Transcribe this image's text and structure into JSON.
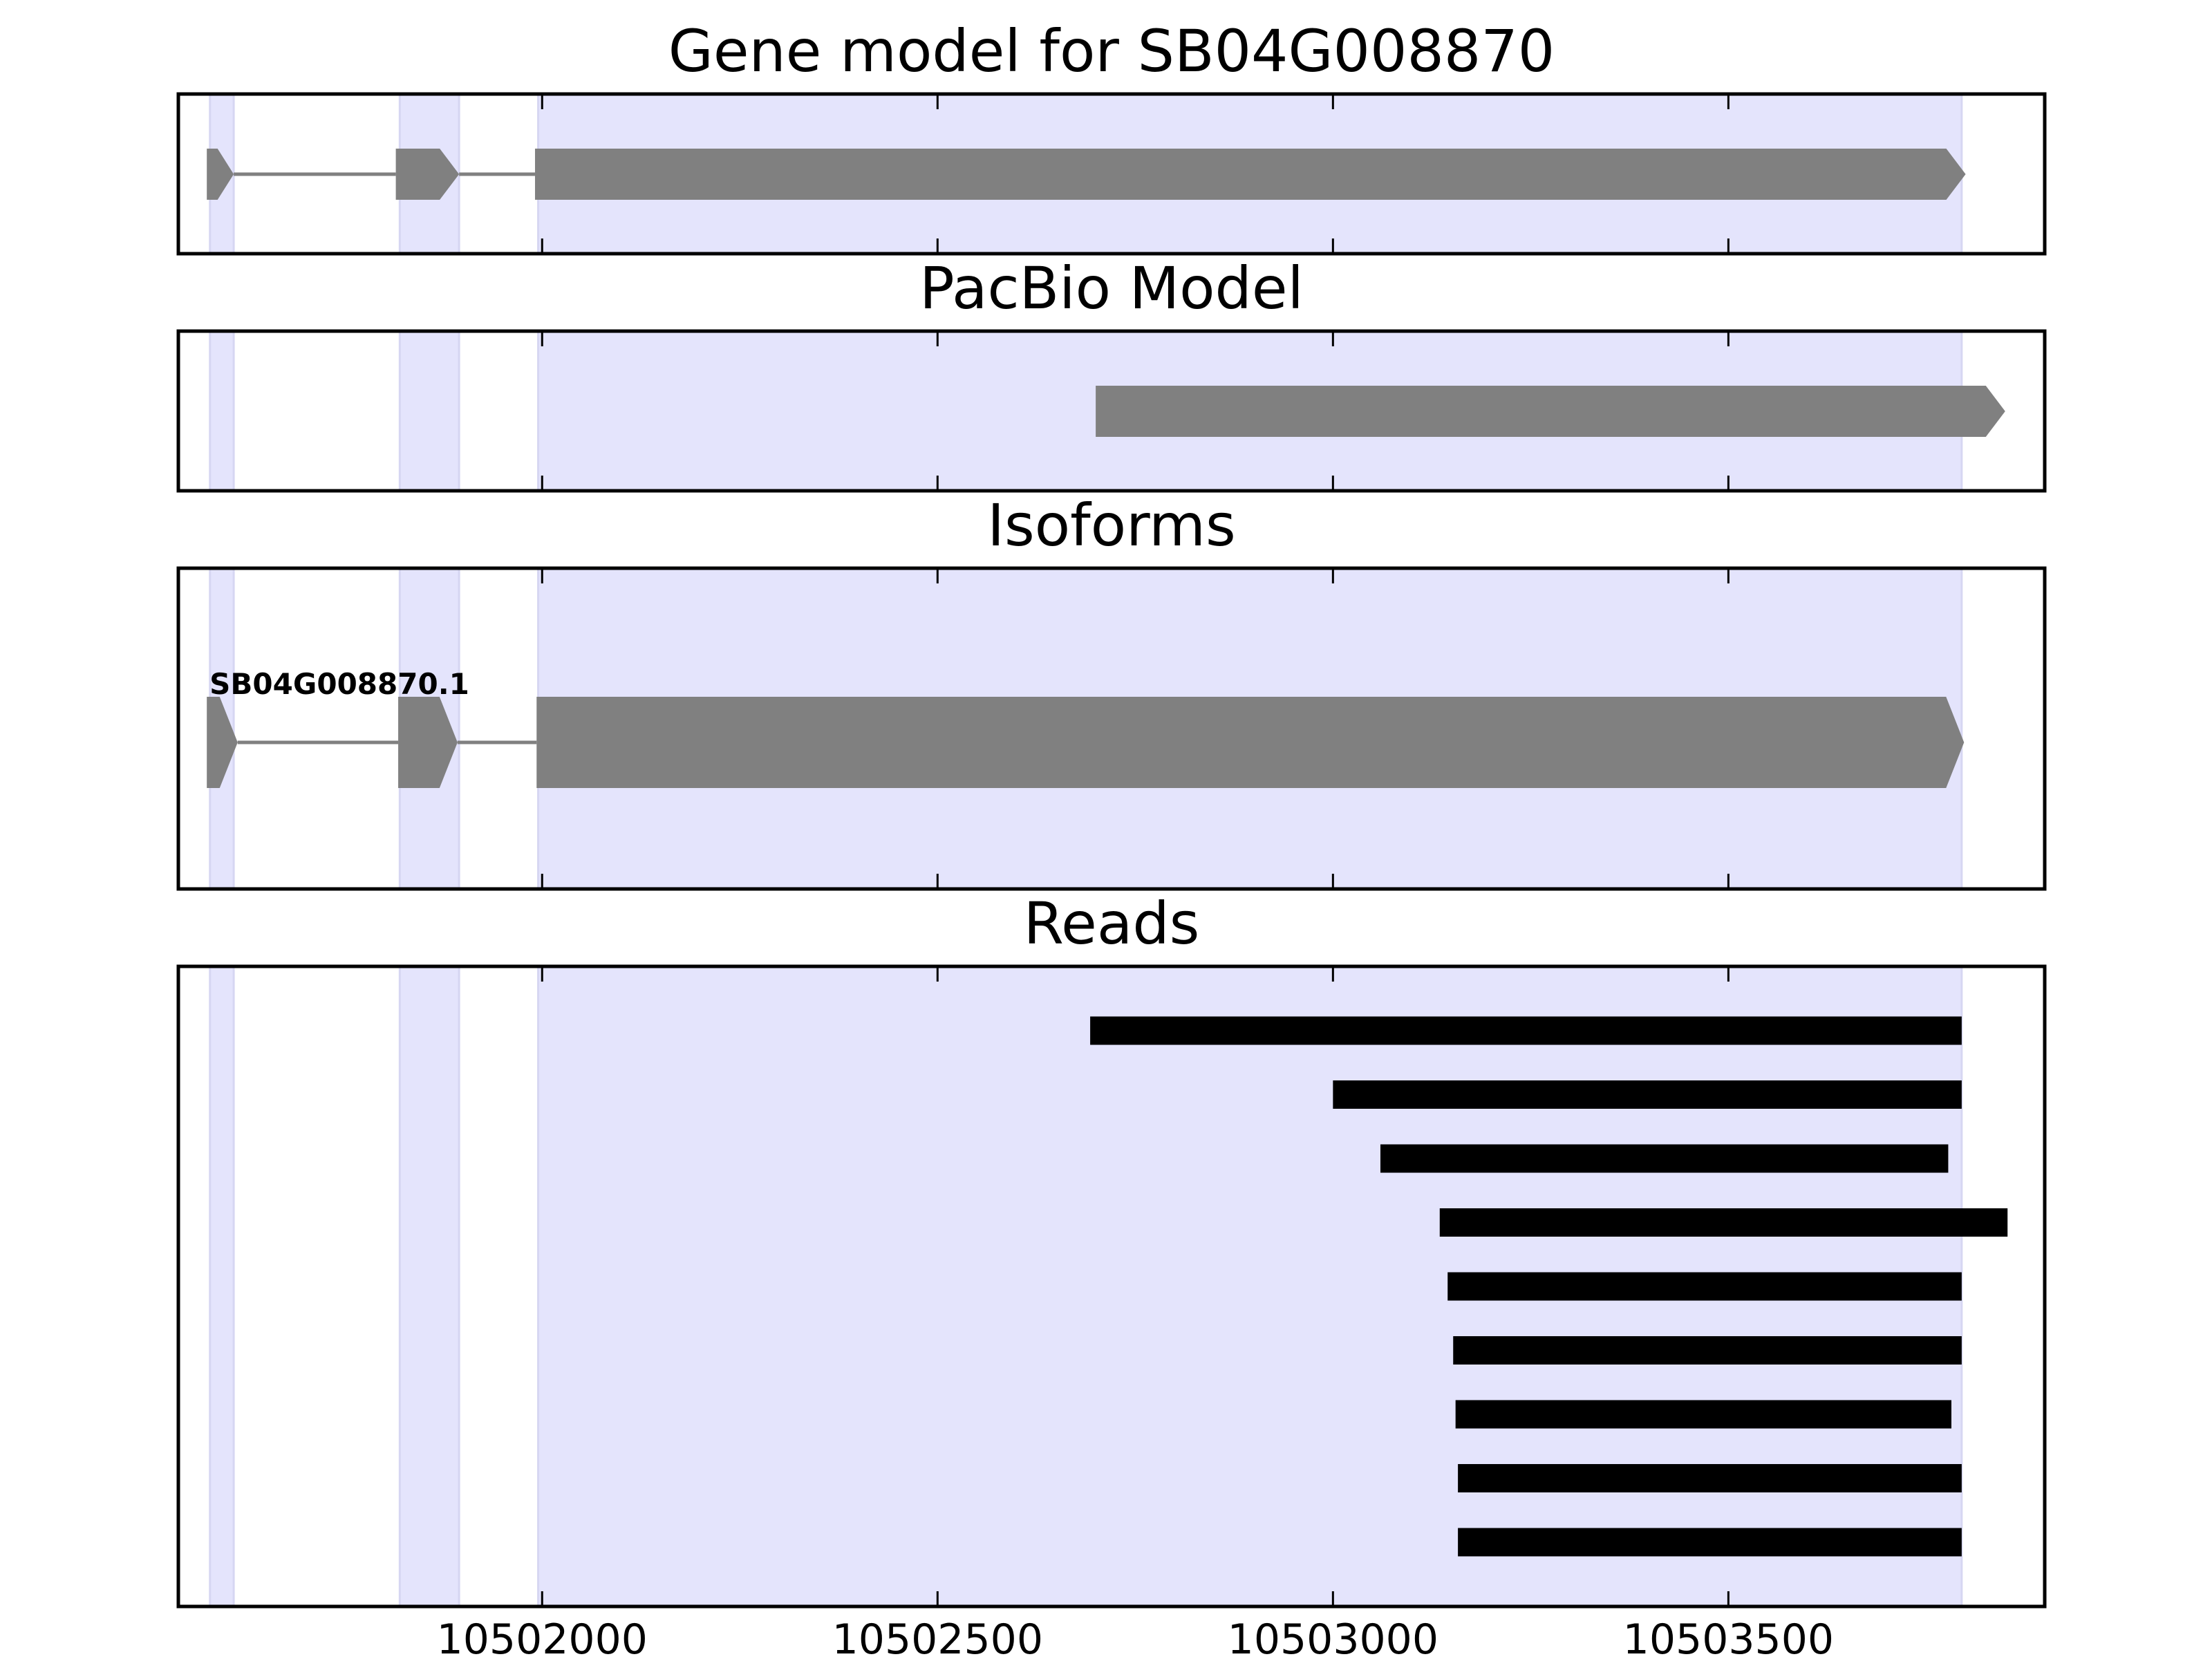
{
  "chart_data": {
    "type": "gene-track",
    "x_axis": {
      "xlim": [
        10501540,
        10503900
      ],
      "ticks": [
        10502000,
        10502500,
        10503000,
        10503500
      ],
      "tick_labels": [
        "10502000",
        "10502500",
        "10503000",
        "10503500"
      ]
    },
    "colors": {
      "exon_highlight": "#e4e4fc",
      "exon_highlight_edge": "#d6d6f2",
      "feature": "#808080",
      "read": "#000000",
      "frame": "#000000"
    },
    "exon_regions": [
      {
        "start": 10501580,
        "end": 10501610
      },
      {
        "start": 10501820,
        "end": 10501895
      },
      {
        "start": 10501995,
        "end": 10503795
      }
    ],
    "panels": [
      {
        "id": "gene-model",
        "title": "Gene model for SB04G008870",
        "strand": "+",
        "exons": [
          {
            "start": 10501576,
            "end": 10501610
          },
          {
            "start": 10501815,
            "end": 10501895
          },
          {
            "start": 10501991,
            "end": 10503800
          }
        ]
      },
      {
        "id": "pacbio-model",
        "title": "PacBio Model",
        "strand": "+",
        "exons": [
          {
            "start": 10502700,
            "end": 10503850
          }
        ]
      },
      {
        "id": "isoforms",
        "title": "Isoforms",
        "isoforms": [
          {
            "name": "SB04G008870.1",
            "strand": "+",
            "exons": [
              {
                "start": 10501576,
                "end": 10501615
              },
              {
                "start": 10501818,
                "end": 10501893
              },
              {
                "start": 10501993,
                "end": 10503798
              }
            ]
          }
        ]
      },
      {
        "id": "reads",
        "title": "Reads",
        "reads": [
          {
            "start": 10502693,
            "end": 10503795
          },
          {
            "start": 10503000,
            "end": 10503795
          },
          {
            "start": 10503060,
            "end": 10503778
          },
          {
            "start": 10503135,
            "end": 10503853
          },
          {
            "start": 10503145,
            "end": 10503795
          },
          {
            "start": 10503152,
            "end": 10503795
          },
          {
            "start": 10503155,
            "end": 10503782
          },
          {
            "start": 10503158,
            "end": 10503795
          },
          {
            "start": 10503158,
            "end": 10503795
          }
        ]
      }
    ]
  }
}
